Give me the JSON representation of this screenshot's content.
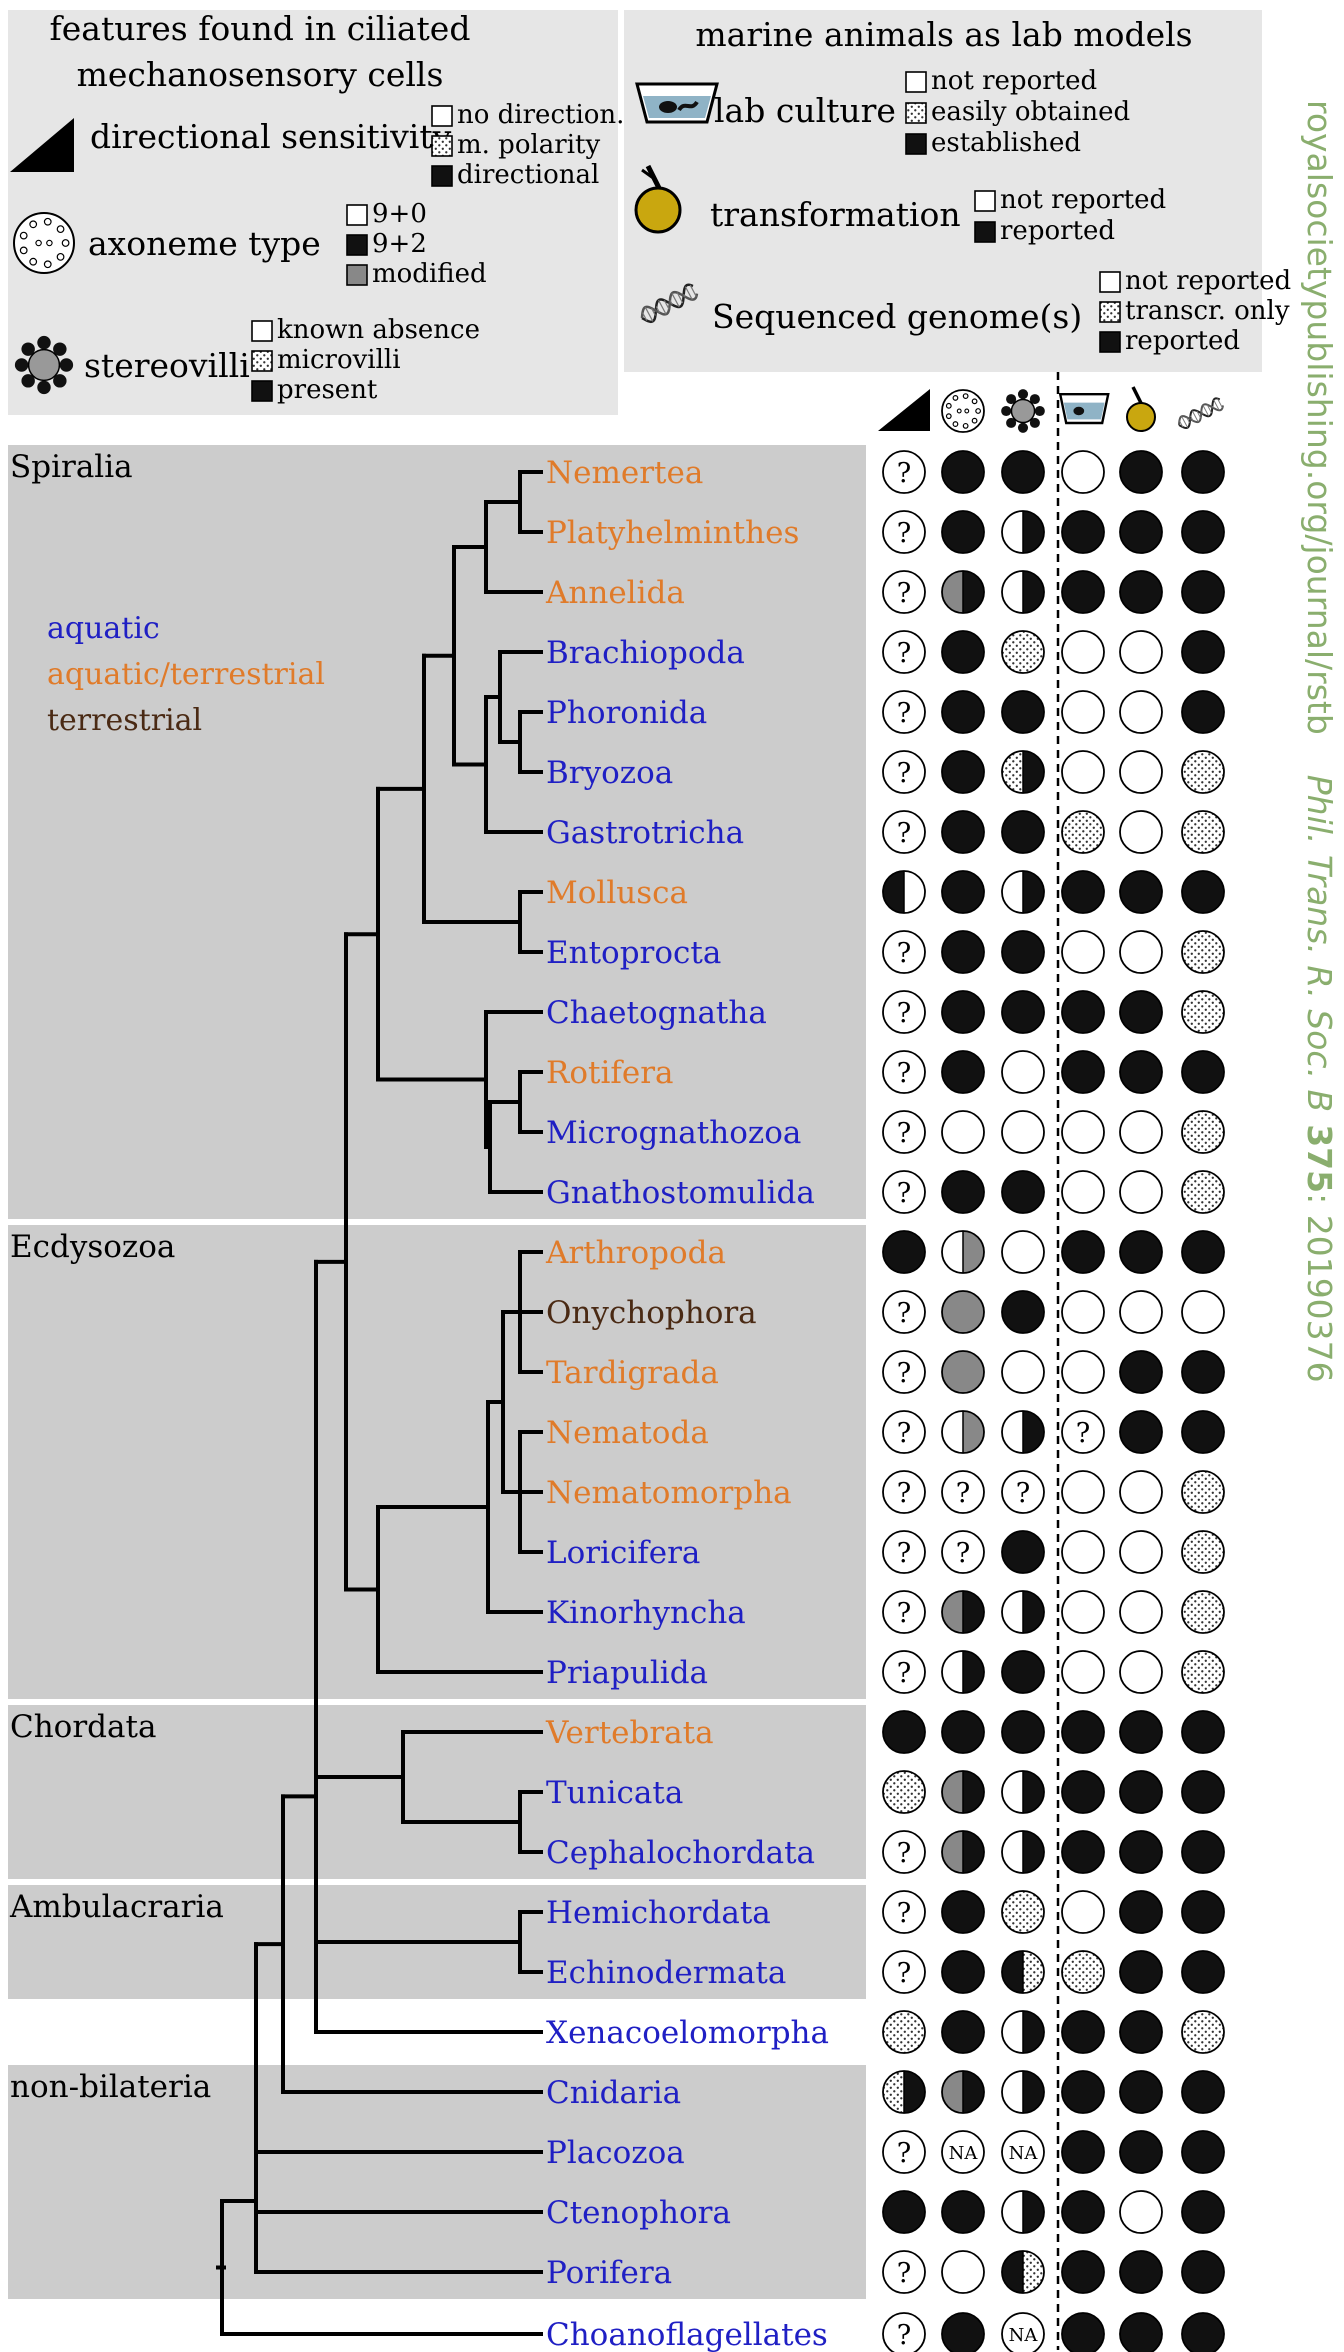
{
  "colors": {
    "aquatic": "#1f1fc4",
    "aquatic_terrestrial": "#e07b2a",
    "terrestrial": "#4a2a14",
    "panel": "#e6e6e6",
    "group_bg": "#cccccc",
    "side_text": "#8aae6e",
    "transformation_yellow": "#c9a70f"
  },
  "legend_left": {
    "title_line1": "features found in ciliated",
    "title_line2": "mechanosensory cells",
    "directional": {
      "label": "directional sensitivity",
      "icon": "triangle-icon",
      "items": [
        {
          "fill": "white",
          "text": "no direction."
        },
        {
          "fill": "stipple",
          "text": "m. polarity"
        },
        {
          "fill": "black",
          "text": "directional"
        }
      ]
    },
    "axoneme": {
      "label": "axoneme type",
      "icon": "axoneme-icon",
      "items": [
        {
          "fill": "white",
          "text": "9+0"
        },
        {
          "fill": "black",
          "text": "9+2"
        },
        {
          "fill": "gray",
          "text": "modified"
        }
      ]
    },
    "stereovilli": {
      "label": "stereovilli",
      "icon": "stereovilli-icon",
      "items": [
        {
          "fill": "white",
          "text": "known absence"
        },
        {
          "fill": "stipple",
          "text": "microvilli"
        },
        {
          "fill": "black",
          "text": "present"
        }
      ]
    }
  },
  "legend_right": {
    "title": "marine animals as lab models",
    "lab_culture": {
      "label": "lab culture",
      "icon": "culture-dish-icon",
      "items": [
        {
          "fill": "white",
          "text": "not reported"
        },
        {
          "fill": "stipple",
          "text": "easily obtained"
        },
        {
          "fill": "black",
          "text": "established"
        }
      ]
    },
    "transformation": {
      "label": "transformation",
      "icon": "transformation-icon",
      "items": [
        {
          "fill": "white",
          "text": "not reported"
        },
        {
          "fill": "black",
          "text": "reported"
        }
      ]
    },
    "genome": {
      "label": "Sequenced genome(s)",
      "icon": "dna-icon",
      "items": [
        {
          "fill": "white",
          "text": "not reported"
        },
        {
          "fill": "stipple",
          "text": "transcr. only"
        },
        {
          "fill": "black",
          "text": "reported"
        }
      ]
    }
  },
  "habitat_legend": {
    "aquatic": "aquatic",
    "aquatic_terrestrial": "aquatic/terrestrial",
    "terrestrial": "terrestrial"
  },
  "groups": [
    {
      "name": "Spiralia",
      "first": 0,
      "last": 12
    },
    {
      "name": "Ecdysozoa",
      "first": 13,
      "last": 20
    },
    {
      "name": "Chordata",
      "first": 21,
      "last": 23
    },
    {
      "name": "Ambulacraria",
      "first": 24,
      "last": 25
    },
    {
      "name": "non-bilateria",
      "first": 27,
      "last": 30
    }
  ],
  "column_icons": [
    "triangle-icon",
    "axoneme-icon",
    "stereovilli-icon",
    "culture-dish-icon",
    "transformation-icon",
    "dna-icon"
  ],
  "states_note": "W=white, B=black, G=gray, S=stipple, Q=question, NA=not applicable, L?R?=left/right halves",
  "taxa": [
    {
      "name": "Nemertea",
      "habitat": "aquatic_terrestrial",
      "states": [
        "Q",
        "B",
        "B",
        "W",
        "B",
        "B"
      ]
    },
    {
      "name": "Platyhelminthes",
      "habitat": "aquatic_terrestrial",
      "states": [
        "Q",
        "B",
        "WB",
        "B",
        "B",
        "B"
      ]
    },
    {
      "name": "Annelida",
      "habitat": "aquatic_terrestrial",
      "states": [
        "Q",
        "GB",
        "WB",
        "B",
        "B",
        "B"
      ]
    },
    {
      "name": "Brachiopoda",
      "habitat": "aquatic",
      "states": [
        "Q",
        "B",
        "S",
        "W",
        "W",
        "B"
      ]
    },
    {
      "name": "Phoronida",
      "habitat": "aquatic",
      "states": [
        "Q",
        "B",
        "B",
        "W",
        "W",
        "B"
      ]
    },
    {
      "name": "Bryozoa",
      "habitat": "aquatic",
      "states": [
        "Q",
        "B",
        "SB",
        "W",
        "W",
        "S"
      ]
    },
    {
      "name": "Gastrotricha",
      "habitat": "aquatic",
      "states": [
        "Q",
        "B",
        "B",
        "S",
        "W",
        "S"
      ]
    },
    {
      "name": "Mollusca",
      "habitat": "aquatic_terrestrial",
      "states": [
        "BW",
        "B",
        "WB",
        "B",
        "B",
        "B"
      ]
    },
    {
      "name": "Entoprocta",
      "habitat": "aquatic",
      "states": [
        "Q",
        "B",
        "B",
        "W",
        "W",
        "S"
      ]
    },
    {
      "name": "Chaetognatha",
      "habitat": "aquatic",
      "states": [
        "Q",
        "B",
        "B",
        "B",
        "B",
        "S"
      ]
    },
    {
      "name": "Rotifera",
      "habitat": "aquatic_terrestrial",
      "states": [
        "Q",
        "B",
        "W",
        "B",
        "B",
        "B"
      ]
    },
    {
      "name": "Micrognathozoa",
      "habitat": "aquatic",
      "states": [
        "Q",
        "W",
        "W",
        "W",
        "W",
        "S"
      ]
    },
    {
      "name": "Gnathostomulida",
      "habitat": "aquatic",
      "states": [
        "Q",
        "B",
        "B",
        "W",
        "W",
        "S"
      ]
    },
    {
      "name": "Arthropoda",
      "habitat": "aquatic_terrestrial",
      "states": [
        "B",
        "WG",
        "W",
        "B",
        "B",
        "B"
      ]
    },
    {
      "name": "Onychophora",
      "habitat": "terrestrial",
      "states": [
        "Q",
        "G",
        "B",
        "W",
        "W",
        "W"
      ]
    },
    {
      "name": "Tardigrada",
      "habitat": "aquatic_terrestrial",
      "states": [
        "Q",
        "G",
        "W",
        "W",
        "B",
        "B"
      ]
    },
    {
      "name": "Nematoda",
      "habitat": "aquatic_terrestrial",
      "states": [
        "Q",
        "WG",
        "WB",
        "Q",
        "B",
        "B"
      ]
    },
    {
      "name": "Nematomorpha",
      "habitat": "aquatic_terrestrial",
      "states": [
        "Q",
        "Q",
        "Q",
        "W",
        "W",
        "S"
      ]
    },
    {
      "name": "Loricifera",
      "habitat": "aquatic",
      "states": [
        "Q",
        "Q",
        "B",
        "W",
        "W",
        "S"
      ]
    },
    {
      "name": "Kinorhyncha",
      "habitat": "aquatic",
      "states": [
        "Q",
        "GB",
        "WB",
        "W",
        "W",
        "S"
      ]
    },
    {
      "name": "Priapulida",
      "habitat": "aquatic",
      "states": [
        "Q",
        "WB",
        "B",
        "W",
        "W",
        "S"
      ]
    },
    {
      "name": "Vertebrata",
      "habitat": "aquatic_terrestrial",
      "states": [
        "B",
        "B",
        "B",
        "B",
        "B",
        "B"
      ]
    },
    {
      "name": "Tunicata",
      "habitat": "aquatic",
      "states": [
        "S",
        "GB",
        "WB",
        "B",
        "B",
        "B"
      ]
    },
    {
      "name": "Cephalochordata",
      "habitat": "aquatic",
      "states": [
        "Q",
        "GB",
        "WB",
        "B",
        "B",
        "B"
      ]
    },
    {
      "name": "Hemichordata",
      "habitat": "aquatic",
      "states": [
        "Q",
        "B",
        "S",
        "W",
        "B",
        "B"
      ]
    },
    {
      "name": "Echinodermata",
      "habitat": "aquatic",
      "states": [
        "Q",
        "B",
        "BS",
        "S",
        "B",
        "B"
      ]
    },
    {
      "name": "Xenacoelomorpha",
      "habitat": "aquatic",
      "states": [
        "S",
        "B",
        "WB",
        "B",
        "B",
        "S"
      ]
    },
    {
      "name": "Cnidaria",
      "habitat": "aquatic",
      "states": [
        "SB",
        "GB",
        "WB",
        "B",
        "B",
        "B"
      ]
    },
    {
      "name": "Placozoa",
      "habitat": "aquatic",
      "states": [
        "Q",
        "NA",
        "NA",
        "B",
        "B",
        "B"
      ]
    },
    {
      "name": "Ctenophora",
      "habitat": "aquatic",
      "states": [
        "B",
        "B",
        "WB",
        "B",
        "W",
        "B"
      ]
    },
    {
      "name": "Porifera",
      "habitat": "aquatic",
      "states": [
        "Q",
        "W",
        "BS",
        "B",
        "B",
        "B"
      ]
    },
    {
      "name": "Choanoflagellates",
      "habitat": "aquatic",
      "states": [
        "Q",
        "B",
        "NA",
        "B",
        "B",
        "B"
      ]
    }
  ],
  "side_text": {
    "url": "royalsocietypublishing.org/journal/rstb",
    "citation_italic": "Phil. Trans. R. Soc. B",
    "volume": "375",
    "article": ": 20190376"
  }
}
